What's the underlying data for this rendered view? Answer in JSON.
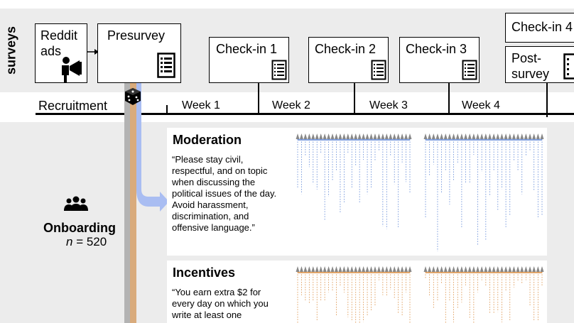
{
  "side_label": "surveys",
  "boxes": {
    "reddit_ads": "Reddit ads",
    "presurvey": "Presurvey",
    "checkin1": "Check-in 1",
    "checkin2": "Check-in 2",
    "checkin3": "Check-in 3",
    "checkin4": "Check-in 4",
    "postsurvey_line1": "Post-",
    "postsurvey_line2": "survey"
  },
  "timeline": {
    "recruitment": "Recruitment",
    "weeks": [
      "Week 1",
      "Week 2",
      "Week 3",
      "Week 4"
    ]
  },
  "onboarding": {
    "label": "Onboarding",
    "n_var": "n",
    "n_value": " = 520"
  },
  "panels": {
    "moderation": {
      "title": "Moderation",
      "quote_lines": [
        "“Please stay civil,",
        "respectful, and on topic",
        "when discussing the",
        "political issues of the day.",
        "Avoid harassment,",
        "discrimination, and",
        "offensive language.”"
      ]
    },
    "incentives": {
      "title": "Incentives",
      "quote_lines": [
        "“You earn extra $2 for",
        "every day on which you",
        "write at least one"
      ]
    }
  },
  "colors": {
    "band": "#ececec",
    "blue_flow": "#a9bdf2",
    "tan_flow": "#d9ab7c",
    "gray_flow": "#b3b3b3",
    "tree_blue": "#5b84d6",
    "tree_orange": "#d98a3c"
  }
}
